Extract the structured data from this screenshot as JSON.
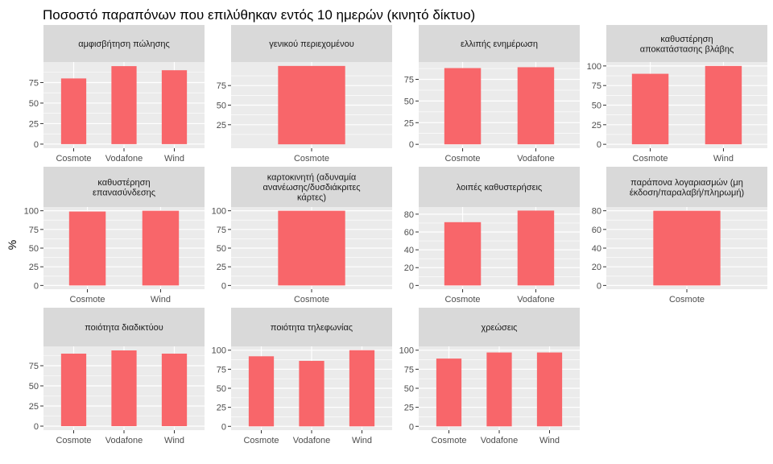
{
  "chart_data": {
    "type": "bar",
    "title": "Ποσοστό παραπόνων που επιλύθηκαν εντός 10 ημερών (κινητό δίκτυο)",
    "ylabel": "%",
    "xlabel": "",
    "bar_color": "#F8666A",
    "panel_bg": "#EBEBEB",
    "strip_bg": "#D9D9D9",
    "grid": true,
    "facets": [
      {
        "title": [
          "αμφισβήτηση πώλησης"
        ],
        "categories": [
          "Cosmote",
          "Vodafone",
          "Wind"
        ],
        "values": [
          80,
          95,
          90
        ],
        "ylim": [
          -5,
          100
        ],
        "yticks": [
          0,
          25,
          50,
          75
        ]
      },
      {
        "title": [
          "γενικού περιεχομένου"
        ],
        "categories": [
          "Cosmote"
        ],
        "values": [
          100
        ],
        "ylim": [
          -5,
          105
        ],
        "yticks": [
          25,
          50,
          75
        ]
      },
      {
        "title": [
          "ελλιπής ενημέρωση"
        ],
        "categories": [
          "Cosmote",
          "Vodafone"
        ],
        "values": [
          88,
          89
        ],
        "ylim": [
          -4.5,
          95
        ],
        "yticks": [
          0,
          25,
          50,
          75
        ]
      },
      {
        "title": [
          "καθυστέρηση",
          "αποκατάστασης βλάβης"
        ],
        "categories": [
          "Cosmote",
          "Wind"
        ],
        "values": [
          90,
          100
        ],
        "ylim": [
          -5,
          105
        ],
        "yticks": [
          0,
          25,
          50,
          75,
          100
        ]
      },
      {
        "title": [
          "καθυστέρηση",
          "επανασύνδεσης"
        ],
        "categories": [
          "Cosmote",
          "Wind"
        ],
        "values": [
          99,
          100
        ],
        "ylim": [
          -5,
          105
        ],
        "yticks": [
          0,
          25,
          50,
          75,
          100
        ]
      },
      {
        "title": [
          "καρτοκινητή (αδυναμία",
          "ανανέωσης/δυσδιάκριτες",
          "κάρτες)"
        ],
        "categories": [
          "Cosmote"
        ],
        "values": [
          100
        ],
        "ylim": [
          -5,
          105
        ],
        "yticks": [
          0,
          25,
          50,
          75,
          100
        ]
      },
      {
        "title": [
          "λοιπές καθυστερήσεις"
        ],
        "categories": [
          "Cosmote",
          "Vodafone"
        ],
        "values": [
          71,
          84
        ],
        "ylim": [
          -4.2,
          88
        ],
        "yticks": [
          0,
          20,
          40,
          60,
          80
        ]
      },
      {
        "title": [
          "παράπονα λογαριασμών (μη",
          "έκδοση/παραλαβή/πληρωμή)"
        ],
        "categories": [
          "Cosmote"
        ],
        "values": [
          80
        ],
        "ylim": [
          -4,
          84
        ],
        "yticks": [
          0,
          20,
          40,
          60,
          80
        ]
      },
      {
        "title": [
          "ποιότητα διαδικτύου"
        ],
        "categories": [
          "Cosmote",
          "Vodafone",
          "Wind"
        ],
        "values": [
          90,
          94,
          90
        ],
        "ylim": [
          -5,
          99
        ],
        "yticks": [
          0,
          25,
          50,
          75
        ]
      },
      {
        "title": [
          "ποιότητα τηλεφωνίας"
        ],
        "categories": [
          "Cosmote",
          "Vodafone",
          "Wind"
        ],
        "values": [
          92,
          86,
          100
        ],
        "ylim": [
          -5,
          105
        ],
        "yticks": [
          0,
          25,
          50,
          75,
          100
        ]
      },
      {
        "title": [
          "χρεώσεις"
        ],
        "categories": [
          "Cosmote",
          "Vodafone",
          "Wind"
        ],
        "values": [
          89,
          97,
          97
        ],
        "ylim": [
          -5,
          105
        ],
        "yticks": [
          0,
          25,
          50,
          75,
          100
        ]
      }
    ]
  }
}
